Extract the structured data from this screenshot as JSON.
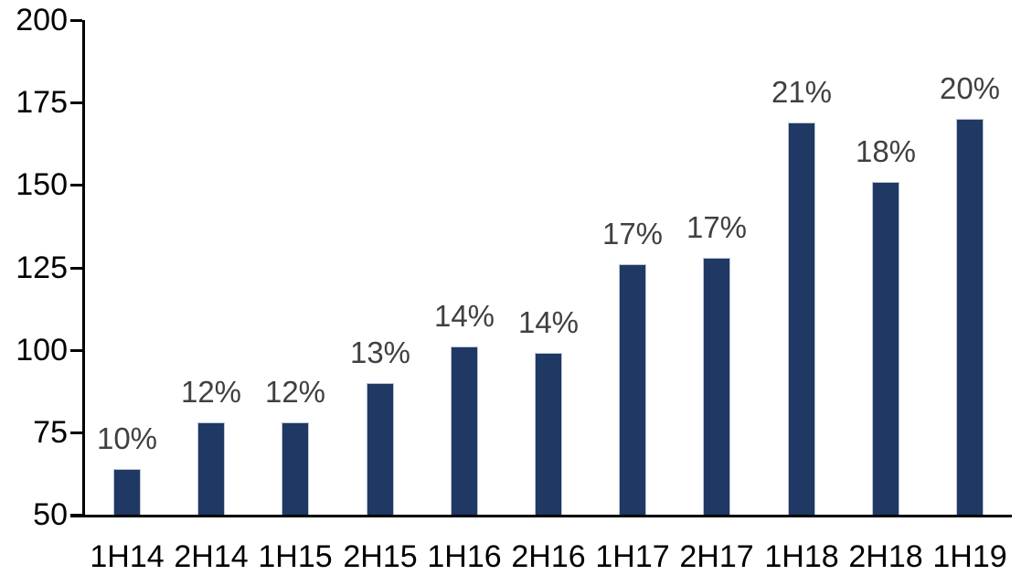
{
  "chart_data": {
    "type": "bar",
    "title": "",
    "xlabel": "",
    "ylabel": "",
    "categories": [
      "1H14",
      "2H14",
      "1H15",
      "2H15",
      "1H16",
      "2H16",
      "1H17",
      "2H17",
      "1H18",
      "2H18",
      "1H19"
    ],
    "series": [
      {
        "name": "bars",
        "values": [
          64,
          78,
          78,
          90,
          101,
          99,
          126,
          128,
          169,
          151,
          170
        ],
        "data_labels": [
          "10%",
          "12%",
          "12%",
          "13%",
          "14%",
          "14%",
          "17%",
          "17%",
          "21%",
          "18%",
          "20%"
        ]
      }
    ],
    "ylim": [
      50,
      200
    ],
    "yticks": [
      200,
      175,
      150,
      125,
      100,
      75,
      50
    ],
    "ytick_interval": 25,
    "grid": false,
    "legend": "none",
    "colors": {
      "bar_fill": "#1F3864",
      "bar_border": "#BCC5D5",
      "data_label_text": "#404040",
      "axis_text": "#000000",
      "axis_line": "#000000",
      "background": "#FFFFFF"
    }
  }
}
